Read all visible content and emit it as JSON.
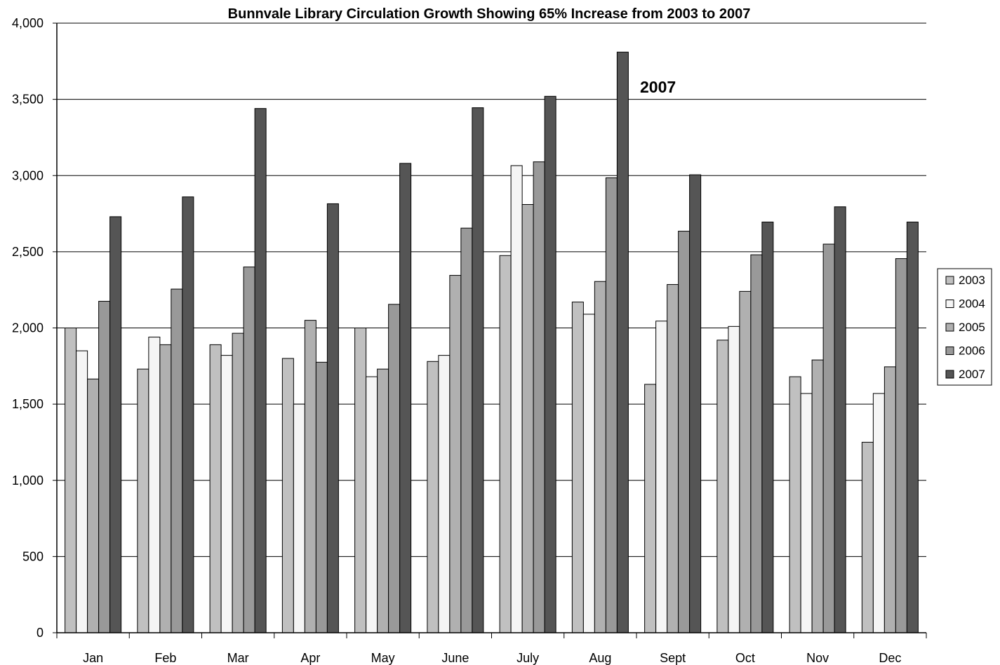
{
  "chart_data": {
    "type": "bar",
    "title": "Bunnvale Library Circulation Growth Showing 65% Increase from 2003 to 2007",
    "xlabel": "",
    "ylabel": "",
    "ylim": [
      0,
      4000
    ],
    "yticks": [
      "0",
      "500",
      "1,000",
      "1,500",
      "2,000",
      "2,500",
      "3,000",
      "3,500",
      "4,000"
    ],
    "ytick_values": [
      0,
      500,
      1000,
      1500,
      2000,
      2500,
      3000,
      3500,
      4000
    ],
    "grid": true,
    "legend_position": "right",
    "categories": [
      "Jan",
      "Feb",
      "Mar",
      "Apr",
      "May",
      "June",
      "July",
      "Aug",
      "Sept",
      "Oct",
      "Nov",
      "Dec"
    ],
    "series": [
      {
        "name": "2003",
        "color": "#c0c0c0",
        "values": [
          2000,
          1730,
          1890,
          1800,
          2000,
          1780,
          2475,
          2170,
          1630,
          1920,
          1680,
          1250
        ]
      },
      {
        "name": "2004",
        "color": "#f5f5f5",
        "values": [
          1850,
          1940,
          1820,
          1500,
          1680,
          1820,
          3065,
          2090,
          2045,
          2010,
          1570,
          1570
        ]
      },
      {
        "name": "2005",
        "color": "#b0b0b0",
        "values": [
          1665,
          1890,
          1965,
          2050,
          1730,
          2345,
          2810,
          2305,
          2285,
          2240,
          1790,
          1745
        ]
      },
      {
        "name": "2006",
        "color": "#999999",
        "values": [
          2175,
          2255,
          2400,
          1775,
          2155,
          2655,
          3090,
          2985,
          2635,
          2480,
          2550,
          2455
        ]
      },
      {
        "name": "2007",
        "color": "#555555",
        "values": [
          2730,
          2860,
          3440,
          2815,
          3080,
          3445,
          3520,
          3810,
          3005,
          2695,
          2795,
          2695
        ]
      }
    ],
    "annotation": {
      "text": "2007"
    }
  }
}
